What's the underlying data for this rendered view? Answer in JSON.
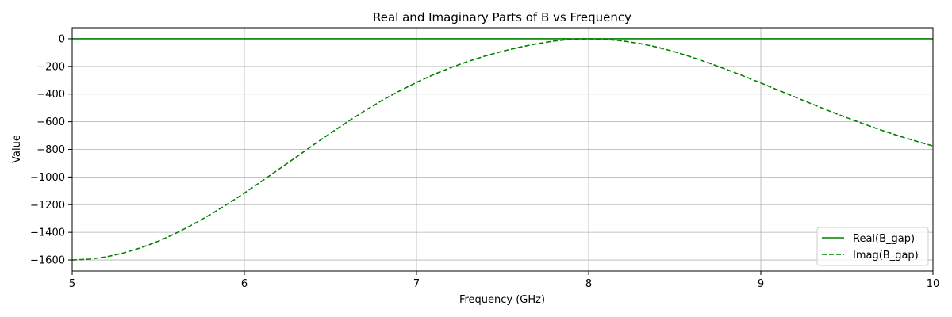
{
  "chart_data": {
    "type": "line",
    "title": "Real and Imaginary Parts of B vs Frequency",
    "xlabel": "Frequency (GHz)",
    "ylabel": "Value",
    "xlim": [
      5,
      10
    ],
    "ylim": [
      -1680,
      80
    ],
    "xticks": [
      5,
      6,
      7,
      8,
      9,
      10
    ],
    "xtick_labels": [
      "5",
      "6",
      "7",
      "8",
      "9",
      "10"
    ],
    "yticks": [
      0,
      -200,
      -400,
      -600,
      -800,
      -1000,
      -1200,
      -1400,
      -1600
    ],
    "ytick_labels": [
      "0",
      "−200",
      "−400",
      "−600",
      "−800",
      "−1000",
      "−1200",
      "−1400",
      "−1600"
    ],
    "grid": true,
    "legend_position": "bottom-right",
    "series": [
      {
        "name": "Real(B_gap)",
        "style": "solid",
        "color": "#008000",
        "x": [
          5,
          10
        ],
        "values": [
          0,
          0
        ]
      },
      {
        "name": "Imag(B_gap)",
        "style": "dashed",
        "color": "#008000",
        "x": [
          5.0,
          5.1,
          5.2,
          5.3,
          5.4,
          5.5,
          5.6,
          5.7,
          5.8,
          5.9,
          6.0,
          6.1,
          6.2,
          6.3,
          6.4,
          6.5,
          6.6,
          6.7,
          6.8,
          6.9,
          7.0,
          7.1,
          7.2,
          7.3,
          7.4,
          7.5,
          7.6,
          7.7,
          7.8,
          7.9,
          8.0,
          8.1,
          8.2,
          8.3,
          8.4,
          8.5,
          8.6,
          8.7,
          8.8,
          8.9,
          9.0,
          9.1,
          9.2,
          9.3,
          9.4,
          9.5,
          9.6,
          9.7,
          9.8,
          9.9,
          10.0
        ],
        "values": [
          -1600,
          -1594,
          -1577,
          -1549,
          -1511,
          -1464,
          -1408,
          -1344,
          -1273,
          -1197,
          -1116,
          -1031,
          -944,
          -857,
          -769,
          -683,
          -600,
          -520,
          -446,
          -378,
          -316,
          -259,
          -208,
          -164,
          -124,
          -90,
          -61,
          -36,
          -16,
          -3,
          0,
          -4,
          -16,
          -35,
          -61,
          -94,
          -133,
          -176,
          -222,
          -270,
          -320,
          -371,
          -422,
          -473,
          -523,
          -571,
          -617,
          -661,
          -702,
          -740,
          -775
        ]
      }
    ]
  }
}
